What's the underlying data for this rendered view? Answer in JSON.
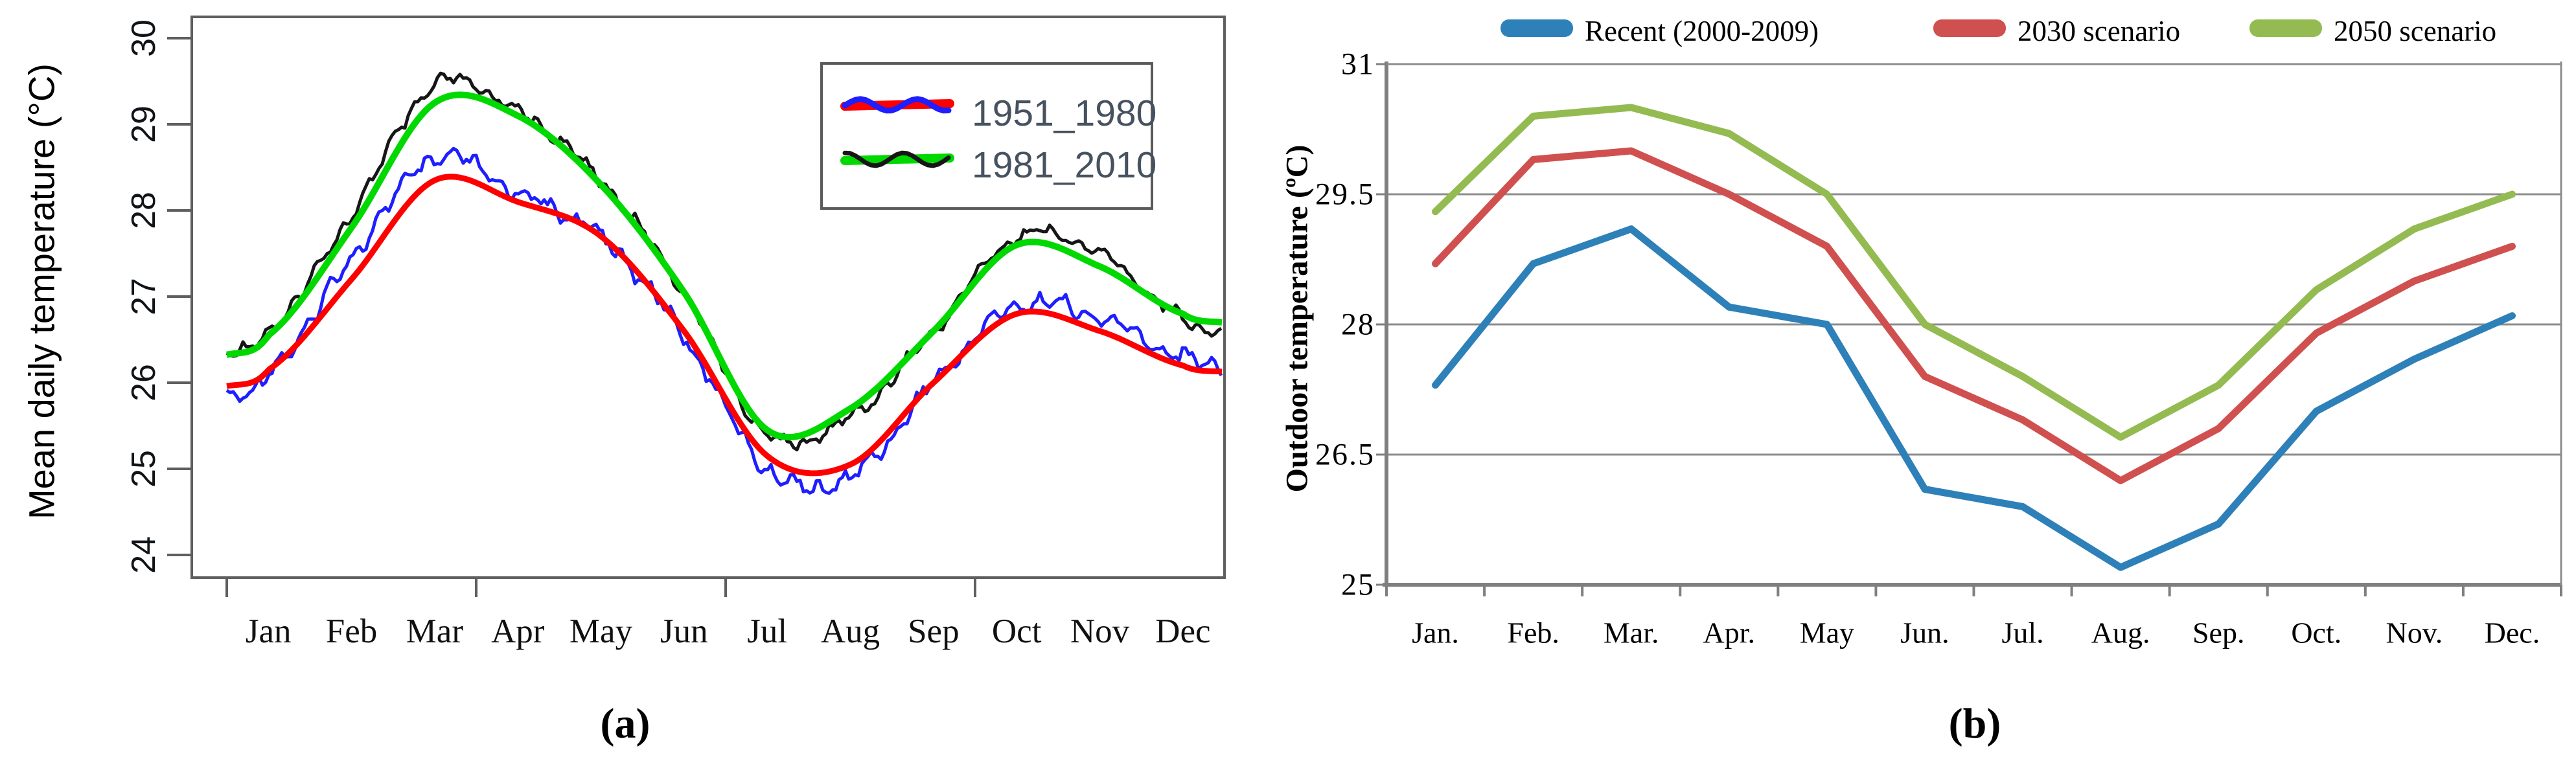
{
  "captions": {
    "a": "(a)",
    "b": "(b)"
  },
  "colors": {
    "a_red": "#ff0000",
    "a_blue": "#1e1eff",
    "a_green": "#00d900",
    "a_black": "#161616",
    "a_box": "#5f5f5f",
    "a_legend_text": "#46525f",
    "b_blue": "#2e80b8",
    "b_red": "#d05050",
    "b_green": "#94bb51",
    "b_grid": "#8c8c8c",
    "b_axis": "#7f7f7f"
  },
  "chart_data": [
    {
      "id": "a",
      "type": "line",
      "ylabel": "Mean daily temperature (°C)",
      "categories": [
        "Jan",
        "Feb",
        "Mar",
        "Apr",
        "May",
        "Jun",
        "Jul",
        "Aug",
        "Sep",
        "Oct",
        "Nov",
        "Dec"
      ],
      "y_ticks": [
        30,
        29,
        28,
        27,
        26,
        25,
        24
      ],
      "ylim": [
        23.7,
        30.3
      ],
      "grid": false,
      "legend_position": "top-right",
      "legend_entries": [
        "1951_1980",
        "1981_2010"
      ],
      "series": [
        {
          "name": "1951_1980",
          "role": "smooth",
          "color_key": "a_red",
          "values": [
            26.15,
            27.2,
            28.35,
            28.1,
            27.7,
            26.6,
            25.15,
            25.05,
            26.0,
            26.8,
            26.6,
            26.2
          ]
        },
        {
          "name": "1951_1980 (daily)",
          "role": "noisy",
          "color_key": "a_blue",
          "noise_amp": 0.14,
          "values": [
            26.1,
            27.45,
            28.6,
            28.2,
            27.7,
            26.55,
            25.0,
            24.9,
            26.0,
            26.9,
            26.75,
            26.3
          ]
        },
        {
          "name": "1981_2010",
          "role": "smooth",
          "color_key": "a_green",
          "values": [
            26.55,
            27.8,
            29.25,
            29.1,
            28.3,
            27.05,
            25.45,
            25.7,
            26.6,
            27.6,
            27.35,
            26.8
          ]
        },
        {
          "name": "1981_2010 (daily)",
          "role": "noisy",
          "color_key": "a_black",
          "noise_amp": 0.11,
          "values": [
            26.6,
            27.95,
            29.45,
            29.15,
            28.35,
            27.05,
            25.4,
            25.6,
            26.6,
            27.7,
            27.5,
            26.75
          ]
        }
      ]
    },
    {
      "id": "b",
      "type": "line",
      "ylabel": "Outdoor temperature (ºC)",
      "categories": [
        "Jan.",
        "Feb.",
        "Mar.",
        "Apr.",
        "May",
        "Jun.",
        "Jul.",
        "Aug.",
        "Sep.",
        "Oct.",
        "Nov.",
        "Dec."
      ],
      "y_ticks": [
        31,
        29.5,
        28,
        26.5,
        25
      ],
      "ylim": [
        25,
        31
      ],
      "grid": true,
      "legend_position": "top",
      "series": [
        {
          "name": "Recent (2000-2009)",
          "color_key": "b_blue",
          "values": [
            27.3,
            28.7,
            29.1,
            28.2,
            28.0,
            26.1,
            25.9,
            25.2,
            25.7,
            27.0,
            27.6,
            28.1
          ]
        },
        {
          "name": "2030 scenario",
          "color_key": "b_red",
          "values": [
            28.7,
            29.9,
            30.0,
            29.5,
            28.9,
            27.4,
            26.9,
            26.2,
            26.8,
            27.9,
            28.5,
            28.9
          ]
        },
        {
          "name": "2050 scenario",
          "color_key": "b_green",
          "values": [
            29.3,
            30.4,
            30.5,
            30.2,
            29.5,
            28.0,
            27.4,
            26.7,
            27.3,
            28.4,
            29.1,
            29.5
          ]
        }
      ]
    }
  ]
}
